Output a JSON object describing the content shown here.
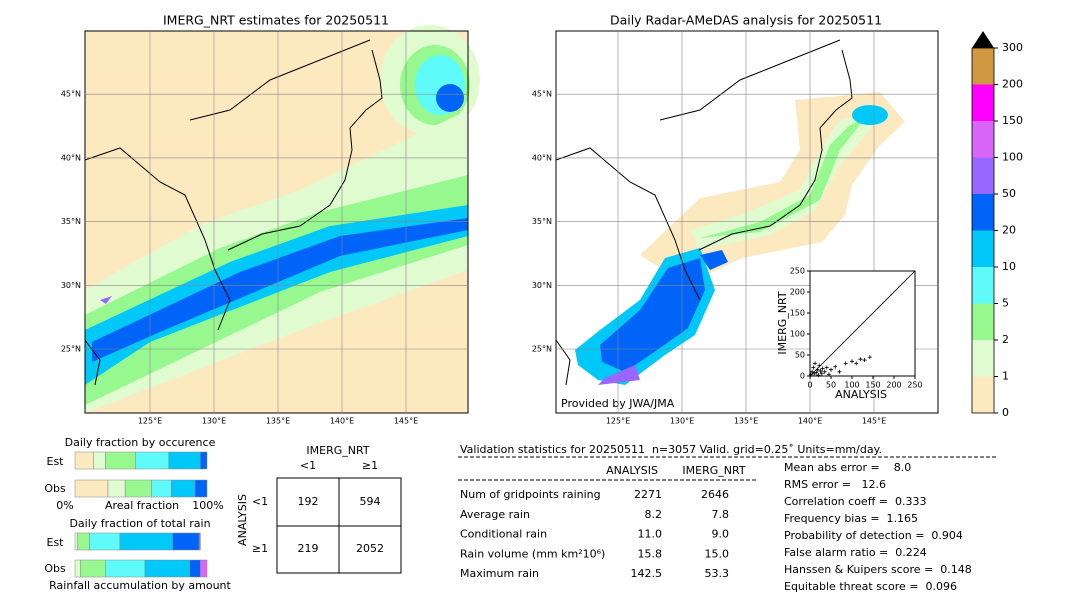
{
  "map_left": {
    "title": "IMERG_NRT estimates for 20250511",
    "lat_ticks": [
      {
        "value": 25,
        "label": "25°N"
      },
      {
        "value": 30,
        "label": "30°N"
      },
      {
        "value": 35,
        "label": "35°N"
      },
      {
        "value": 40,
        "label": "40°N"
      },
      {
        "value": 45,
        "label": "45°N"
      }
    ],
    "lon_ticks": [
      {
        "value": 125,
        "label": "125°E"
      },
      {
        "value": 130,
        "label": "130°E"
      },
      {
        "value": 135,
        "label": "135°E"
      },
      {
        "value": 140,
        "label": "140°E"
      },
      {
        "value": 145,
        "label": "145°E"
      }
    ]
  },
  "map_right": {
    "title": "Daily Radar-AMeDAS analysis for 20250511",
    "credit": "Provided by JWA/JMA",
    "lat_ticks": [
      {
        "value": 25,
        "label": "25°N"
      },
      {
        "value": 30,
        "label": "30°N"
      },
      {
        "value": 35,
        "label": "35°N"
      },
      {
        "value": 40,
        "label": "40°N"
      },
      {
        "value": 45,
        "label": "45°N"
      }
    ],
    "lon_ticks": [
      {
        "value": 125,
        "label": "125°E"
      },
      {
        "value": 130,
        "label": "130°E"
      },
      {
        "value": 135,
        "label": "135°E"
      },
      {
        "value": 140,
        "label": "140°E"
      },
      {
        "value": 145,
        "label": "145°E"
      }
    ]
  },
  "colorbar": {
    "ticks": [
      0,
      1,
      2,
      5,
      10,
      20,
      50,
      100,
      150,
      200,
      300
    ],
    "colors": [
      "#fde9c0",
      "#e0fbd0",
      "#98f890",
      "#5ffbfb",
      "#00c8f8",
      "#0064f8",
      "#9966ff",
      "#d966f8",
      "#ff00ff",
      "#d09840"
    ]
  },
  "scatter": {
    "xlabel": "ANALYSIS",
    "ylabel": "IMERG_NRT",
    "xlim": [
      0,
      250
    ],
    "ylim": [
      0,
      250
    ],
    "xticks": [
      0,
      50,
      100,
      150,
      200,
      250
    ],
    "yticks": [
      0,
      50,
      100,
      150,
      200,
      250
    ],
    "x": [
      2,
      5,
      8,
      10,
      12,
      15,
      18,
      20,
      22,
      25,
      28,
      30,
      35,
      40,
      45,
      50,
      60,
      70,
      85,
      100,
      110,
      120,
      130,
      142.5
    ],
    "y": [
      3,
      10,
      20,
      5,
      30,
      8,
      15,
      2,
      25,
      12,
      6,
      18,
      10,
      20,
      4,
      15,
      22,
      10,
      30,
      35,
      30,
      40,
      38,
      45
    ]
  },
  "occurrence": {
    "title": "Daily fraction by occurence",
    "rows": [
      "Est",
      "Obs"
    ],
    "axis_left": "0%",
    "axis_label": "Areal fraction",
    "axis_right": "100%",
    "colors": [
      "#fde9c0",
      "#e0fbd0",
      "#98f890",
      "#5ffbfb",
      "#00c8f8",
      "#0064f8"
    ],
    "segments": [
      [
        14,
        9,
        23,
        25,
        24,
        5
      ],
      [
        25,
        13,
        20,
        15,
        18,
        9
      ]
    ]
  },
  "total_rain": {
    "title": "Daily fraction of total rain",
    "rows": [
      "Est",
      "Obs"
    ],
    "footer": "Rainfall accumulation by amount",
    "colors": [
      "#e0fbd0",
      "#98f890",
      "#5ffbfb",
      "#00c8f8",
      "#0064f8",
      "#9966ff",
      "#d966f8"
    ],
    "segments": [
      [
        2,
        9,
        23,
        40,
        20,
        1,
        0
      ],
      [
        4,
        19,
        30,
        34,
        8,
        0,
        5
      ]
    ]
  },
  "contingency": {
    "col_header": "IMERG_NRT",
    "cols": [
      "<1",
      "≥1"
    ],
    "row_header": "ANALYSIS",
    "rows": [
      "<1",
      "≥1"
    ],
    "cells": [
      [
        192,
        594
      ],
      [
        219,
        2052
      ]
    ]
  },
  "validation": {
    "title": "Validation statistics for 20250511  n=3057 Valid. grid=0.25˚ Units=mm/day.",
    "columns": [
      "ANALYSIS",
      "IMERG_NRT"
    ],
    "rows": [
      {
        "label": "Num of gridpoints raining",
        "values": [
          "2271",
          "2646"
        ]
      },
      {
        "label": "Average rain",
        "values": [
          "8.2",
          "7.8"
        ]
      },
      {
        "label": "Conditional rain",
        "values": [
          "11.0",
          "9.0"
        ]
      },
      {
        "label": "Rain volume (mm km²10⁶)",
        "values": [
          "15.8",
          "15.0"
        ]
      },
      {
        "label": "Maximum rain",
        "values": [
          "142.5",
          "53.3"
        ]
      }
    ],
    "scores": [
      "Mean abs error =    8.0",
      "RMS error =   12.6",
      "Correlation coeff =  0.333",
      "Frequency bias =  1.165",
      "Probability of detection =  0.904",
      "False alarm ratio =  0.224",
      "Hanssen & Kuipers score =  0.148",
      "Equitable threat score =  0.096"
    ]
  }
}
